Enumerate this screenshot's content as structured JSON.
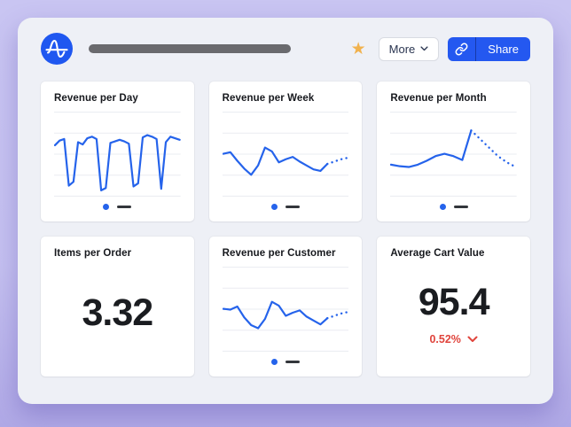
{
  "header": {
    "logo": "amplitude-logo",
    "favorite_icon": "star-icon",
    "more_button": {
      "label": "More"
    },
    "share_button": {
      "label": "Share",
      "icon": "link-icon"
    }
  },
  "colors": {
    "accent": "#2458f0",
    "chart_line": "#2563eb",
    "negative": "#e0443c",
    "star": "#f1b24e",
    "legend_dash": "#33363b",
    "page_background": "#c9c5f2",
    "panel_background": "#eef0f6",
    "card_background": "#ffffff",
    "grid_line": "#eaecf1",
    "title_placeholder_bar": "#6a6a6e"
  },
  "legend": {
    "items": [
      "series-dot",
      "series-dash"
    ]
  },
  "chart_data": [
    {
      "type": "line",
      "title": "Revenue per Day",
      "ylim": [
        0,
        100
      ],
      "grid": true,
      "values": [
        66,
        72,
        74,
        14,
        19,
        70,
        67,
        75,
        77,
        74,
        8,
        11,
        69,
        71,
        73,
        71,
        68,
        13,
        17,
        76,
        79,
        77,
        74,
        10,
        70,
        77,
        75,
        73
      ],
      "projected": []
    },
    {
      "type": "line",
      "title": "Revenue per Week",
      "ylim": [
        0,
        100
      ],
      "grid": true,
      "values": [
        55,
        57,
        46,
        36,
        28,
        40,
        63,
        58,
        44,
        48,
        51,
        45,
        40,
        35,
        33,
        42
      ],
      "projected": [
        45,
        48,
        50
      ]
    },
    {
      "type": "line",
      "title": "Revenue per Month",
      "ylim": [
        0,
        100
      ],
      "grid": true,
      "values": [
        41,
        39,
        38,
        41,
        46,
        52,
        55,
        52,
        47,
        85
      ],
      "projected": [
        74,
        63,
        52,
        44,
        38
      ]
    },
    {
      "type": "metric",
      "title": "Items per Order",
      "value": "3.32"
    },
    {
      "type": "line",
      "title": "Revenue per Customer",
      "ylim": [
        0,
        100
      ],
      "grid": true,
      "values": [
        55,
        54,
        58,
        44,
        34,
        30,
        42,
        64,
        59,
        46,
        50,
        53,
        45,
        40,
        35,
        43
      ],
      "projected": [
        46,
        49,
        51
      ]
    },
    {
      "type": "metric",
      "title": "Average Cart Value",
      "value": "95.4",
      "delta": "0.52%",
      "delta_direction": "down"
    }
  ]
}
